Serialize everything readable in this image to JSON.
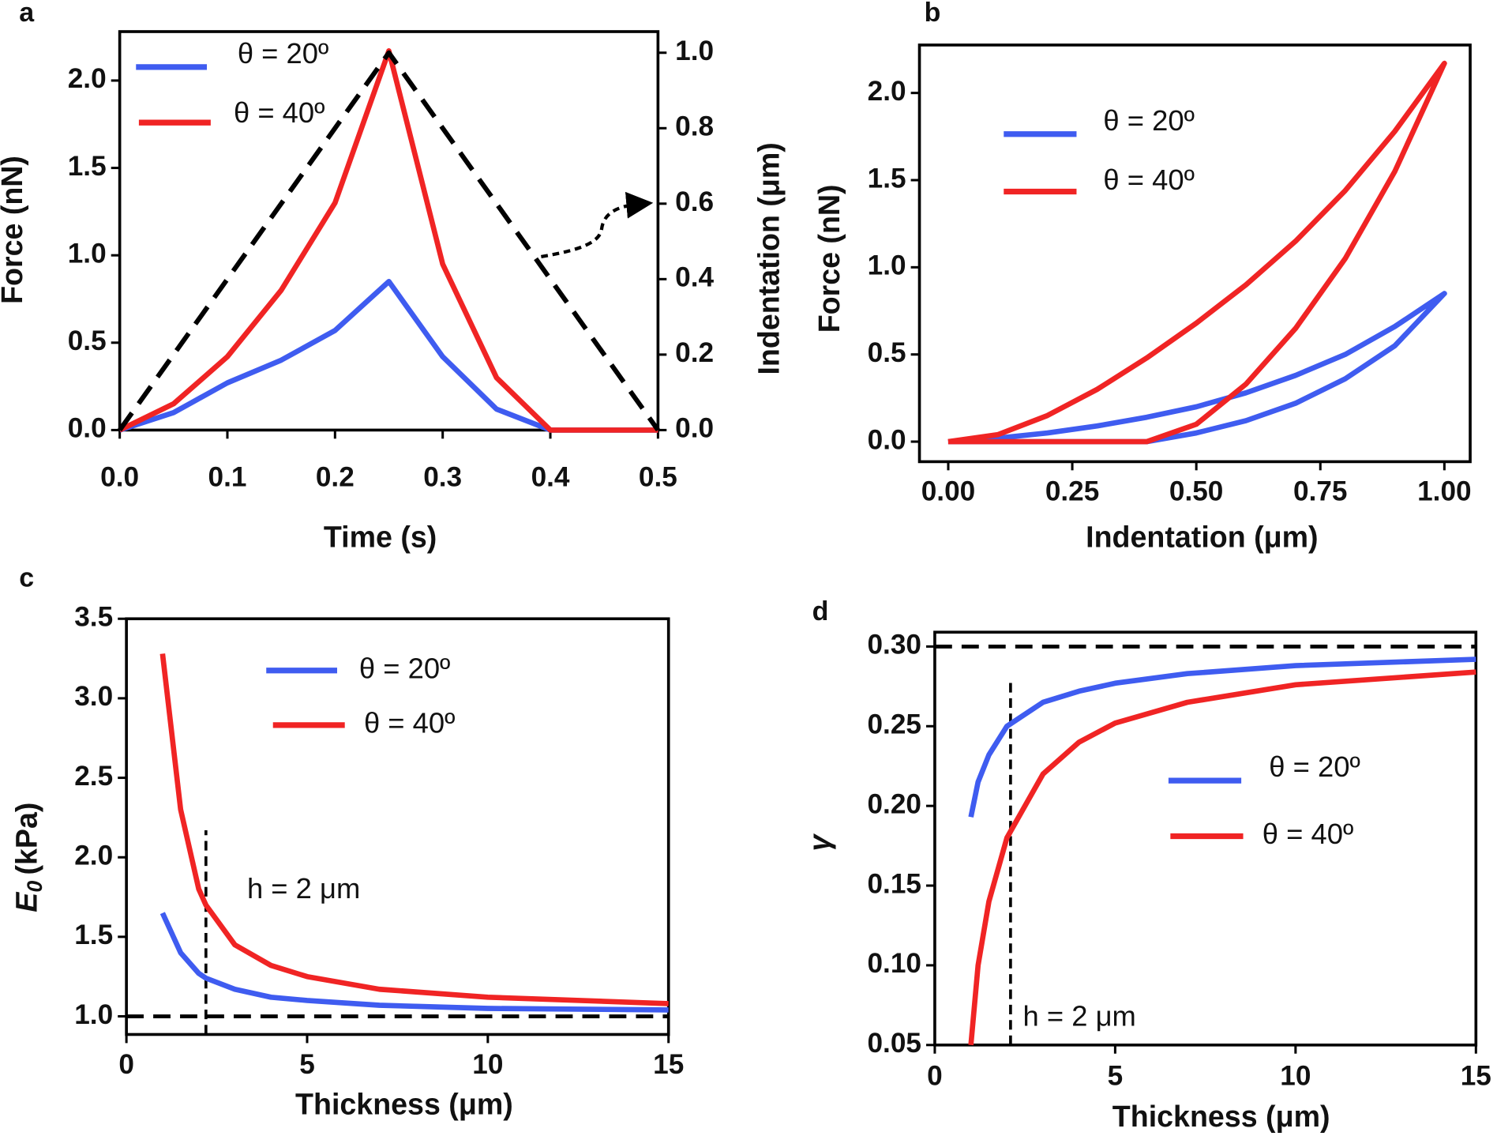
{
  "chart_data": [
    {
      "type": "line",
      "label": "a",
      "xlabel": "Time (s)",
      "ylabel": "Force (nN)",
      "y2label": "Indentation (μm)",
      "x": [
        0,
        0.05,
        0.1,
        0.15,
        0.2,
        0.25,
        0.3,
        0.35,
        0.4,
        0.45,
        0.5
      ],
      "series": [
        {
          "name": "θ = 20º",
          "color": "#3f5cf0",
          "values": [
            0,
            0.1,
            0.27,
            0.4,
            0.57,
            0.85,
            0.42,
            0.12,
            0,
            0,
            0
          ]
        },
        {
          "name": "θ = 40º",
          "color": "#f02424",
          "values": [
            0,
            0.15,
            0.42,
            0.8,
            1.3,
            2.17,
            0.95,
            0.3,
            0,
            0,
            0
          ]
        },
        {
          "color": "#000000",
          "dashed": true,
          "axis": "y2",
          "values": [
            0,
            0.2,
            0.4,
            0.6,
            0.8,
            1.0,
            0.8,
            0.6,
            0.4,
            0.2,
            0
          ]
        }
      ],
      "xlim": [
        0,
        0.5
      ],
      "ylim": [
        0,
        2.28
      ],
      "y2lim": [
        0,
        1.056
      ],
      "xticks": [
        {
          "value": 0,
          "label": "0.0"
        },
        0.1,
        0.2,
        0.3,
        0.4,
        0.5
      ],
      "yticks": [
        {
          "value": 0,
          "label": "0.0"
        },
        0.5,
        {
          "value": 1,
          "label": "1.0"
        },
        1.5,
        {
          "value": 2,
          "label": "2.0"
        }
      ],
      "y2ticks": [
        {
          "value": 0,
          "label": "0.0"
        },
        0.2,
        0.4,
        0.6,
        0.8,
        {
          "value": 1,
          "label": "1.0"
        }
      ]
    },
    {
      "type": "line",
      "label": "b",
      "xlabel": "Indentation (μm)",
      "ylabel": "Force (nN)",
      "x": [
        0,
        0.1,
        0.2,
        0.3,
        0.4,
        0.5,
        0.6,
        0.7,
        0.8,
        0.9,
        1.0,
        0.9,
        0.8,
        0.7,
        0.6,
        0.5,
        0.4,
        0.3,
        0.2,
        0.1,
        0
      ],
      "series": [
        {
          "name": "θ = 20º",
          "color": "#3f5cf0",
          "values": [
            0,
            0.02,
            0.05,
            0.09,
            0.14,
            0.2,
            0.28,
            0.38,
            0.5,
            0.66,
            0.85,
            0.55,
            0.36,
            0.22,
            0.12,
            0.05,
            0,
            0,
            0,
            0,
            0
          ]
        },
        {
          "name": "θ = 40º",
          "color": "#f02424",
          "values": [
            0,
            0.04,
            0.15,
            0.3,
            0.48,
            0.68,
            0.9,
            1.15,
            1.44,
            1.78,
            2.17,
            1.55,
            1.05,
            0.65,
            0.33,
            0.1,
            0,
            0,
            0,
            0,
            0
          ]
        }
      ],
      "xlim": [
        -0.058,
        1.052
      ],
      "ylim": [
        -0.115,
        2.275
      ],
      "xticks": [
        {
          "value": 0,
          "label": "0.00"
        },
        0.25,
        {
          "value": 0.5,
          "label": "0.50"
        },
        0.75,
        {
          "value": 1,
          "label": "1.00"
        }
      ],
      "yticks": [
        {
          "value": 0,
          "label": "0.0"
        },
        0.5,
        {
          "value": 1,
          "label": "1.0"
        },
        1.5,
        {
          "value": 2,
          "label": "2.0"
        }
      ]
    },
    {
      "type": "line",
      "label": "c",
      "xlabel": "Thickness (μm)",
      "ylabel": {
        "symbol": "E",
        "subscript": "0",
        "unit": "(kPa)"
      },
      "annotation": "h = 2 μm",
      "x": [
        1,
        1.5,
        2,
        2.2,
        3,
        4,
        5,
        7,
        10,
        15
      ],
      "series": [
        {
          "name": "θ = 20º",
          "color": "#3f5cf0",
          "values": [
            1.65,
            1.4,
            1.27,
            1.24,
            1.17,
            1.12,
            1.1,
            1.07,
            1.05,
            1.04
          ]
        },
        {
          "name": "θ = 40º",
          "color": "#f02424",
          "values": [
            3.28,
            2.3,
            1.8,
            1.7,
            1.45,
            1.32,
            1.25,
            1.17,
            1.12,
            1.08
          ]
        }
      ],
      "hlines": [
        1.0
      ],
      "vlines": [
        {
          "x": 2.2,
          "to": 2.17
        }
      ],
      "xlim": [
        0,
        15
      ],
      "ylim": [
        0.886,
        3.5
      ],
      "xticks": [
        0,
        5,
        10,
        15
      ],
      "yticks": [
        {
          "value": 1,
          "label": "1.0"
        },
        1.5,
        {
          "value": 2,
          "label": "2.0"
        },
        2.5,
        {
          "value": 3,
          "label": "3.0"
        },
        3.5
      ]
    },
    {
      "type": "line",
      "label": "d",
      "xlabel": "Thickness (μm)",
      "ylabel": "γ",
      "annotation": "h = 2 μm",
      "x": [
        1,
        1.2,
        1.5,
        2,
        3,
        4,
        5,
        7,
        10,
        15
      ],
      "series": [
        {
          "name": "θ = 20º",
          "color": "#3f5cf0",
          "values": [
            0.193,
            0.215,
            0.232,
            0.25,
            0.265,
            0.272,
            0.277,
            0.283,
            0.288,
            0.292
          ]
        },
        {
          "name": "θ = 40º",
          "color": "#f02424",
          "values": [
            0.05,
            0.1,
            0.14,
            0.18,
            0.22,
            0.24,
            0.252,
            0.265,
            0.276,
            0.284
          ]
        }
      ],
      "hlines": [
        0.3
      ],
      "vlines": [
        {
          "x": 2.1,
          "to": 0.278
        }
      ],
      "xlim": [
        0,
        15
      ],
      "ylim": [
        0.05,
        0.309
      ],
      "xticks": [
        0,
        5,
        10,
        15
      ],
      "yticks": [
        0.05,
        {
          "value": 0.1,
          "label": "0.10"
        },
        0.15,
        {
          "value": 0.2,
          "label": "0.20"
        },
        0.25,
        {
          "value": 0.3,
          "label": "0.30"
        }
      ]
    }
  ]
}
